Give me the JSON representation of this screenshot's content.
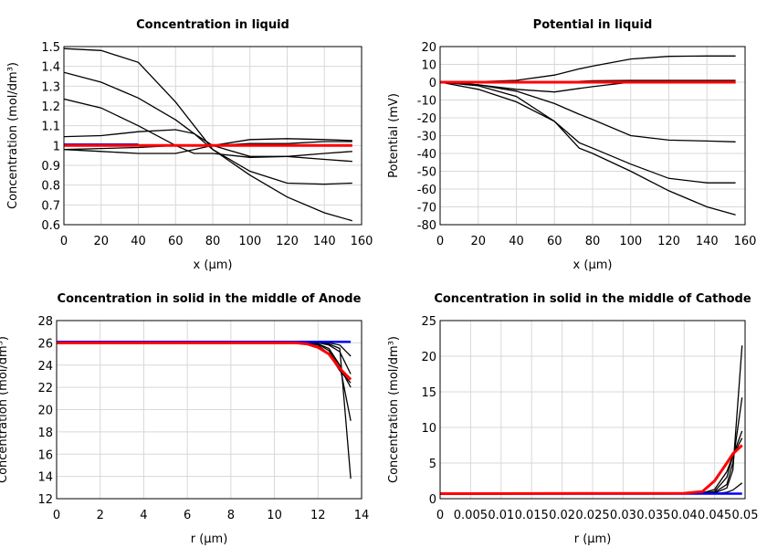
{
  "chart_data": [
    {
      "type": "line",
      "title": "Concentration in liquid",
      "xlabel": "x (µm)",
      "ylabel": "Concentration (mol/dm³)",
      "xlim": [
        0,
        160
      ],
      "ylim": [
        0.6,
        1.5
      ],
      "grid": true,
      "xticks": [
        "0",
        "20",
        "40",
        "60",
        "80",
        "100",
        "120",
        "140",
        "160"
      ],
      "yticks": [
        "0.6",
        "0.7",
        "0.8",
        "0.9",
        "1",
        "1.1",
        "1.2",
        "1.3",
        "1.4",
        "1.5"
      ],
      "x": [
        0,
        20,
        40,
        60,
        70,
        80,
        100,
        120,
        140,
        155
      ],
      "series": [
        {
          "color": "#000000",
          "values": [
            1.49,
            1.48,
            1.42,
            1.22,
            1.1,
            0.98,
            0.85,
            0.74,
            0.66,
            0.62
          ]
        },
        {
          "color": "#000000",
          "values": [
            1.37,
            1.32,
            1.24,
            1.13,
            1.06,
            0.98,
            0.87,
            0.81,
            0.805,
            0.81
          ]
        },
        {
          "color": "#000000",
          "values": [
            1.235,
            1.19,
            1.1,
            1.0,
            0.96,
            0.96,
            0.94,
            0.945,
            0.96,
            0.97
          ]
        },
        {
          "color": "#000000",
          "values": [
            1.045,
            1.05,
            1.07,
            1.08,
            1.06,
            1.0,
            0.945,
            0.945,
            0.93,
            0.92
          ]
        },
        {
          "color": "#000000",
          "values": [
            0.98,
            0.97,
            0.96,
            0.96,
            0.98,
            1.0,
            1.03,
            1.035,
            1.03,
            1.025
          ]
        },
        {
          "color": "#000000",
          "values": [
            0.98,
            0.985,
            0.99,
            1.0,
            1.0,
            1.0,
            1.01,
            1.01,
            1.02,
            1.02
          ]
        },
        {
          "color": "#0000ff",
          "x": [
            0,
            40
          ],
          "values": [
            1.005,
            1.005
          ]
        },
        {
          "color": "#ff0000",
          "x": [
            0,
            155
          ],
          "values": [
            1.0,
            1.0
          ]
        }
      ]
    },
    {
      "type": "line",
      "title": "Potential in liquid",
      "xlabel": "x (µm)",
      "ylabel": "Potential (mV)",
      "xlim": [
        0,
        160
      ],
      "ylim": [
        -80,
        20
      ],
      "grid": true,
      "xticks": [
        "0",
        "20",
        "40",
        "60",
        "80",
        "100",
        "120",
        "140",
        "160"
      ],
      "yticks": [
        "-80",
        "-70",
        "-60",
        "-50",
        "-40",
        "-30",
        "-20",
        "-10",
        "0",
        "10",
        "20"
      ],
      "x": [
        0,
        20,
        40,
        60,
        73,
        80,
        100,
        120,
        140,
        155
      ],
      "series": [
        {
          "color": "#000000",
          "values": [
            0,
            0.3,
            1,
            4,
            7.5,
            9,
            13,
            14.5,
            14.7,
            14.7
          ]
        },
        {
          "color": "#000000",
          "values": [
            0,
            0,
            0,
            0.3,
            0.5,
            0.8,
            1,
            1,
            1,
            1
          ]
        },
        {
          "color": "#000000",
          "values": [
            0,
            -1.5,
            -4,
            -5.5,
            -3.5,
            -2.5,
            0,
            0,
            0,
            0
          ]
        },
        {
          "color": "#000000",
          "values": [
            0,
            -1.5,
            -5,
            -12,
            -18,
            -21,
            -30,
            -32.5,
            -33,
            -33.5
          ]
        },
        {
          "color": "#000000",
          "values": [
            0,
            -2,
            -8,
            -22,
            -34,
            -37,
            -46,
            -54,
            -56.5,
            -56.5
          ]
        },
        {
          "color": "#000000",
          "values": [
            0,
            -4,
            -11,
            -22,
            -37,
            -40,
            -50,
            -61,
            -70,
            -74.5
          ]
        },
        {
          "color": "#ff0000",
          "x": [
            0,
            155
          ],
          "values": [
            0,
            0
          ]
        }
      ]
    },
    {
      "type": "line",
      "title": "Concentration in solid in the middle of Anode",
      "xlabel": "r (µm)",
      "ylabel": "Concentration (mol/dm³)",
      "xlim": [
        0,
        14
      ],
      "ylim": [
        12,
        28
      ],
      "grid": true,
      "xticks": [
        "0",
        "2",
        "4",
        "6",
        "8",
        "10",
        "12",
        "14"
      ],
      "yticks": [
        "12",
        "14",
        "16",
        "18",
        "20",
        "22",
        "24",
        "26",
        "28"
      ],
      "x": [
        0,
        11,
        11.5,
        12,
        12.5,
        13,
        13.5
      ],
      "series": [
        {
          "color": "#000000",
          "values": [
            26,
            26,
            26,
            26,
            25.9,
            25.5,
            13.8
          ]
        },
        {
          "color": "#000000",
          "values": [
            26,
            26,
            26,
            25.9,
            25.5,
            24,
            19
          ]
        },
        {
          "color": "#000000",
          "values": [
            26,
            26,
            26,
            25.9,
            25.3,
            23.8,
            22
          ]
        },
        {
          "color": "#000000",
          "values": [
            26,
            26,
            26,
            25.8,
            25,
            23.5,
            22.4
          ]
        },
        {
          "color": "#000000",
          "values": [
            26,
            26,
            26,
            26,
            25.8,
            25.2,
            23.2
          ]
        },
        {
          "color": "#000000",
          "values": [
            26,
            26,
            26,
            26,
            26,
            25.8,
            24.8
          ]
        },
        {
          "color": "#0000ff",
          "values": [
            26.1,
            26.1,
            26.1,
            26.1,
            26.1,
            26.1,
            26.1
          ]
        },
        {
          "color": "#ff0000",
          "values": [
            26,
            26,
            25.9,
            25.6,
            25,
            23.7,
            22.7
          ]
        }
      ]
    },
    {
      "type": "line",
      "title": "Concentration in solid in the middle of Cathode",
      "xlabel": "r (µm)",
      "ylabel": "Concentration (mol/dm³)",
      "xlim": [
        0,
        0.05
      ],
      "ylim": [
        0,
        25
      ],
      "grid": true,
      "xticks": [
        "0",
        "0.005",
        "0.01",
        "0.015",
        "0.02",
        "0.025",
        "0.03",
        "0.035",
        "0.04",
        "0.045",
        "0.05"
      ],
      "yticks": [
        "0",
        "5",
        "10",
        "15",
        "20",
        "25"
      ],
      "x": [
        0,
        0.04,
        0.043,
        0.045,
        0.047,
        0.048,
        0.0495
      ],
      "series": [
        {
          "color": "#000000",
          "values": [
            0.7,
            0.7,
            0.7,
            0.8,
            1.5,
            4,
            21.5
          ]
        },
        {
          "color": "#000000",
          "values": [
            0.7,
            0.7,
            0.7,
            0.9,
            2,
            5,
            14.2
          ]
        },
        {
          "color": "#000000",
          "values": [
            0.7,
            0.7,
            0.75,
            1,
            3,
            6,
            9.5
          ]
        },
        {
          "color": "#000000",
          "values": [
            0.7,
            0.7,
            0.8,
            1.3,
            3.8,
            6,
            8.5
          ]
        },
        {
          "color": "#000000",
          "values": [
            0.7,
            0.7,
            0.7,
            0.7,
            0.9,
            1.2,
            2.2
          ]
        },
        {
          "color": "#0000ff",
          "values": [
            0.7,
            0.7,
            0.7,
            0.7,
            0.7,
            0.7,
            0.7
          ]
        },
        {
          "color": "#ff0000",
          "values": [
            0.7,
            0.75,
            1,
            2.5,
            5,
            6.3,
            7.5
          ]
        }
      ]
    }
  ]
}
